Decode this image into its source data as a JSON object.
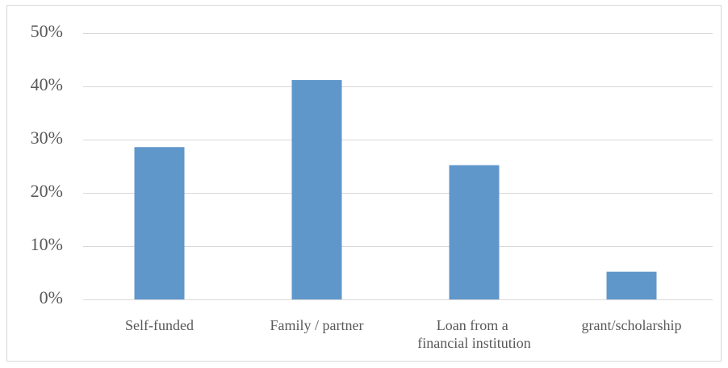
{
  "chart_data": {
    "type": "bar",
    "categories": [
      "Self-funded",
      "Family / partner",
      "Loan from a financial institution",
      "grant/scholarship"
    ],
    "values": [
      28.6,
      41.2,
      25.2,
      5.2
    ],
    "color": "#6097cb",
    "ylim": [
      0,
      50
    ],
    "yticks": [
      {
        "value": 0,
        "label": "0%"
      },
      {
        "value": 10,
        "label": "10%"
      },
      {
        "value": 20,
        "label": "20%"
      },
      {
        "value": 30,
        "label": "30%"
      },
      {
        "value": 40,
        "label": "40%"
      },
      {
        "value": 50,
        "label": "50%"
      }
    ],
    "grid": true
  }
}
